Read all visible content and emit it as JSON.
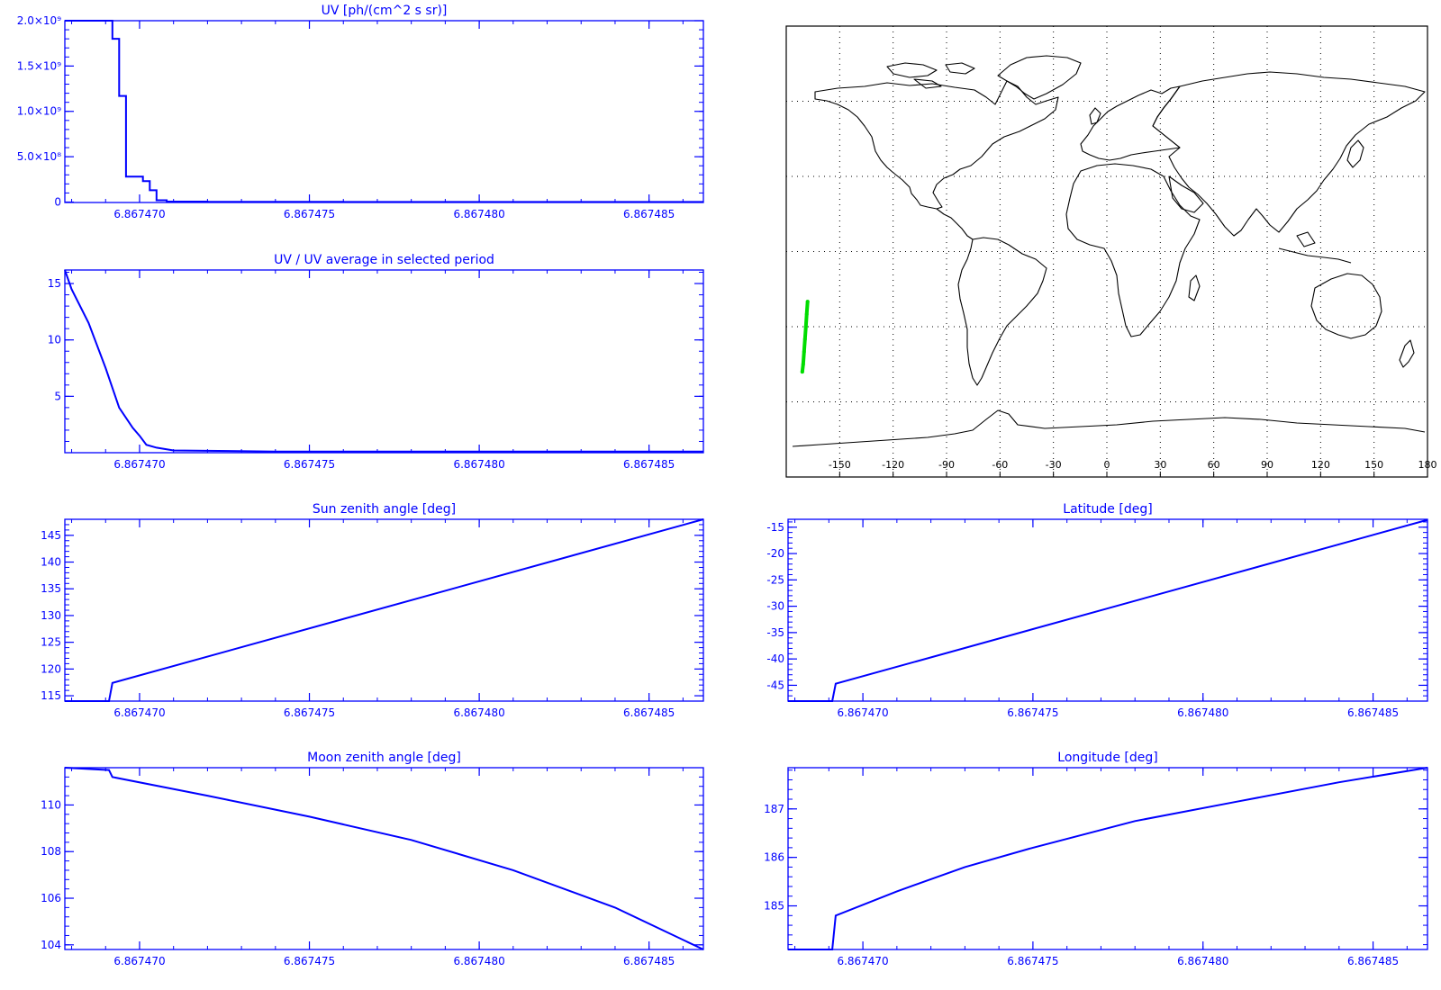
{
  "colors": {
    "plot": "#0000ff",
    "map_line": "#000000",
    "track": "#00dd00",
    "background": "#ffffff"
  },
  "map": {
    "lon_ticks": [
      "-150",
      "-120",
      "-90",
      "-60",
      "-30",
      "0",
      "30",
      "60",
      "90",
      "120",
      "150",
      "180"
    ],
    "lon_range": [
      -180,
      180
    ],
    "lat_range": [
      -90,
      90
    ],
    "grid": "dotted",
    "track_points": [
      [
        -168,
        -20
      ],
      [
        -168.5,
        -25
      ],
      [
        -169,
        -30
      ],
      [
        -169.5,
        -35
      ],
      [
        -170,
        -40
      ],
      [
        -170.5,
        -45
      ],
      [
        -171,
        -48
      ]
    ]
  },
  "chart_data": [
    {
      "id": "uv",
      "type": "line",
      "step": true,
      "title": "UV [ph/(cm^2 s sr)]",
      "xlim": [
        6.8674678,
        6.8674866
      ],
      "ylim": [
        -5000000,
        2000000000
      ],
      "xticks": [
        6.86747,
        6.867475,
        6.86748,
        6.867485
      ],
      "xtick_labels": [
        "6.867470",
        "6.867475",
        "6.867480",
        "6.867485"
      ],
      "yticks": [
        0,
        500000000,
        1000000000,
        1500000000,
        2000000000
      ],
      "ytick_labels": [
        "0",
        "5.0×10⁸",
        "1.0×10⁹",
        "1.5×10⁹",
        "2.0×10⁹"
      ],
      "series": [
        {
          "x": [
            6.8674678,
            6.8674692,
            6.8674694,
            6.8674696,
            6.8674701,
            6.8674703,
            6.8674705,
            6.8674708,
            6.867472,
            6.867474,
            6.867476,
            6.86748,
            6.867484,
            6.8674866
          ],
          "y": [
            2000000000,
            1800000000,
            1170000000,
            280000000,
            230000000,
            130000000,
            20000000,
            5000000,
            3000000,
            2000000,
            1000000,
            1000000,
            1000000,
            1000000
          ]
        }
      ]
    },
    {
      "id": "uv_ratio",
      "type": "line",
      "title": "UV / UV average in selected period",
      "xlim": [
        6.8674678,
        6.8674866
      ],
      "ylim": [
        0,
        16.2
      ],
      "xticks": [
        6.86747,
        6.867475,
        6.86748,
        6.867485
      ],
      "xtick_labels": [
        "6.867470",
        "6.867475",
        "6.867480",
        "6.867485"
      ],
      "yticks": [
        5,
        10,
        15
      ],
      "ytick_labels": [
        "5",
        "10",
        "15"
      ],
      "series": [
        {
          "x": [
            6.8674678,
            6.867468,
            6.8674685,
            6.867469,
            6.8674694,
            6.8674698,
            6.86747,
            6.8674702,
            6.8674705,
            6.867471,
            6.867474,
            6.86748,
            6.8674866
          ],
          "y": [
            16.2,
            14.5,
            11.5,
            7.5,
            4.0,
            2.2,
            1.5,
            0.7,
            0.45,
            0.2,
            0.1,
            0.1,
            0.1
          ]
        }
      ]
    },
    {
      "id": "sza",
      "type": "line",
      "title": "Sun zenith angle [deg]",
      "xlim": [
        6.8674678,
        6.8674866
      ],
      "ylim": [
        114,
        148
      ],
      "xticks": [
        6.86747,
        6.867475,
        6.86748,
        6.867485
      ],
      "xtick_labels": [
        "6.867470",
        "6.867475",
        "6.867480",
        "6.867485"
      ],
      "yticks": [
        115,
        120,
        125,
        130,
        135,
        140,
        145
      ],
      "ytick_labels": [
        "115",
        "120",
        "125",
        "130",
        "135",
        "140",
        "145"
      ],
      "series": [
        {
          "x": [
            6.8674678,
            6.8674691,
            6.8674692,
            6.8674866
          ],
          "y": [
            114,
            114,
            117.4,
            148
          ]
        }
      ]
    },
    {
      "id": "mza",
      "type": "line",
      "title": "Moon zenith angle [deg]",
      "xlim": [
        6.8674678,
        6.8674866
      ],
      "ylim": [
        103.8,
        111.6
      ],
      "xticks": [
        6.86747,
        6.867475,
        6.86748,
        6.867485
      ],
      "xtick_labels": [
        "6.867470",
        "6.867475",
        "6.867480",
        "6.867485"
      ],
      "yticks": [
        104,
        106,
        108,
        110
      ],
      "ytick_labels": [
        "104",
        "106",
        "108",
        "110"
      ],
      "series": [
        {
          "x": [
            6.8674678,
            6.8674691,
            6.8674692,
            6.867472,
            6.867475,
            6.867478,
            6.867481,
            6.867484,
            6.8674866
          ],
          "y": [
            111.6,
            111.5,
            111.2,
            110.4,
            109.5,
            108.5,
            107.2,
            105.6,
            103.8
          ]
        }
      ]
    },
    {
      "id": "lat",
      "type": "line",
      "title": "Latitude [deg]",
      "xlim": [
        6.8674678,
        6.8674866
      ],
      "ylim": [
        -48,
        -13.5
      ],
      "xticks": [
        6.86747,
        6.867475,
        6.86748,
        6.867485
      ],
      "xtick_labels": [
        "6.867470",
        "6.867475",
        "6.867480",
        "6.867485"
      ],
      "yticks": [
        -45,
        -40,
        -35,
        -30,
        -25,
        -20,
        -15
      ],
      "ytick_labels": [
        "-45",
        "-40",
        "-35",
        "-30",
        "-25",
        "-20",
        "-15"
      ],
      "series": [
        {
          "x": [
            6.8674678,
            6.8674691,
            6.8674692,
            6.8674866
          ],
          "y": [
            -48,
            -48,
            -44.7,
            -13.6
          ]
        }
      ]
    },
    {
      "id": "lon",
      "type": "line",
      "title": "Longitude [deg]",
      "xlim": [
        6.8674678,
        6.8674866
      ],
      "ylim": [
        184.1,
        187.85
      ],
      "xticks": [
        6.86747,
        6.867475,
        6.86748,
        6.867485
      ],
      "xtick_labels": [
        "6.867470",
        "6.867475",
        "6.867480",
        "6.867485"
      ],
      "yticks": [
        185,
        186,
        187
      ],
      "ytick_labels": [
        "185",
        "186",
        "187"
      ],
      "series": [
        {
          "x": [
            6.8674678,
            6.8674691,
            6.8674692,
            6.867471,
            6.867473,
            6.867475,
            6.867478,
            6.867481,
            6.867484,
            6.8674866
          ],
          "y": [
            184.1,
            184.1,
            184.8,
            185.3,
            185.8,
            186.2,
            186.75,
            187.15,
            187.55,
            187.85
          ]
        }
      ]
    }
  ]
}
